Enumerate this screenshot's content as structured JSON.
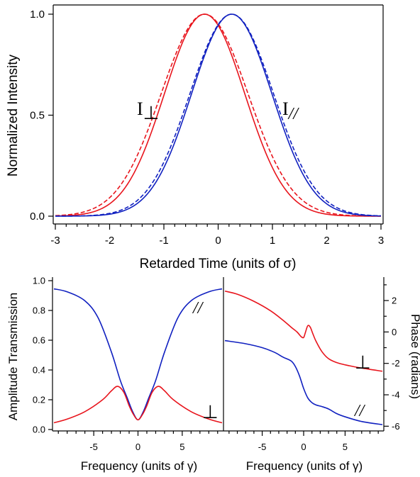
{
  "chart_data": [
    {
      "type": "line",
      "xlabel": "Retarded Time (units of σ)",
      "ylabel": "Normalized Intensity",
      "xlim": [
        -3,
        3
      ],
      "ylim": [
        0,
        1
      ],
      "xticks": [
        "-3",
        "-2",
        "-1",
        "0",
        "1",
        "2",
        "3"
      ],
      "yticks": [
        "0.0",
        "0.5",
        "1.0"
      ],
      "annotations": [
        {
          "text": "I",
          "subscript": "⊥",
          "x": -1.45,
          "y": 0.55
        },
        {
          "text": "I",
          "subscript": "//",
          "x": 1.15,
          "y": 0.55
        }
      ],
      "series": [
        {
          "color": "#e8141c",
          "style": "solid",
          "center": -0.25,
          "sigma": 0.74,
          "peak": 1.0
        },
        {
          "color": "#e8141c",
          "style": "dashed",
          "center": -0.25,
          "sigma": 0.8,
          "peak": 1.0
        },
        {
          "color": "#1020c0",
          "style": "solid",
          "center": 0.25,
          "sigma": 0.74,
          "peak": 1.0
        },
        {
          "color": "#1020c0",
          "style": "dashed",
          "center": 0.25,
          "sigma": 0.77,
          "peak": 1.0
        }
      ]
    },
    {
      "type": "line",
      "xlabel": "Frequency (units of γ)",
      "ylabel": "Amplitude Transmission",
      "xlim": [
        -9.5,
        9.5
      ],
      "ylim": [
        0,
        1
      ],
      "xticks": [
        "-5",
        "0",
        "5"
      ],
      "yticks": [
        "0.0",
        "0.2",
        "0.4",
        "0.6",
        "0.8",
        "1.0"
      ],
      "annotations": [
        {
          "text": "//"
        },
        {
          "text": "⊥"
        }
      ],
      "series": [
        {
          "label": "//",
          "color": "#1020c0",
          "x": [
            -9.5,
            -8,
            -6,
            -4.5,
            -3,
            -2,
            -1.2,
            -0.6,
            0,
            0.6,
            1.2,
            2,
            3,
            4.5,
            6,
            8,
            9.5
          ],
          "y": [
            0.945,
            0.925,
            0.865,
            0.75,
            0.52,
            0.33,
            0.21,
            0.12,
            0.065,
            0.12,
            0.21,
            0.33,
            0.52,
            0.75,
            0.865,
            0.925,
            0.945
          ]
        },
        {
          "label": "⊥",
          "color": "#e8141c",
          "x": [
            -9.5,
            -8,
            -6,
            -4,
            -3,
            -2.3,
            -1.6,
            -1,
            -0.5,
            0,
            0.5,
            1,
            1.6,
            2.3,
            3,
            4,
            6,
            8,
            9.5
          ],
          "y": [
            0.045,
            0.07,
            0.12,
            0.2,
            0.26,
            0.29,
            0.25,
            0.16,
            0.1,
            0.065,
            0.1,
            0.16,
            0.25,
            0.29,
            0.26,
            0.2,
            0.12,
            0.07,
            0.045
          ]
        }
      ]
    },
    {
      "type": "line",
      "xlabel": "Frequency (units of γ)",
      "ylabel": "Phase (radians)",
      "xlim": [
        -9.5,
        9.5
      ],
      "ylim": [
        -6.3,
        3.4
      ],
      "xticks": [
        "-5",
        "0",
        "5"
      ],
      "yticks": [
        "2",
        "0",
        "-2",
        "-4",
        "-6"
      ],
      "annotations": [
        {
          "text": "⊥"
        },
        {
          "text": "//"
        }
      ],
      "series": [
        {
          "label": "⊥",
          "color": "#e8141c",
          "x": [
            -9.5,
            -8,
            -6,
            -4,
            -2.5,
            -1.5,
            -0.8,
            -0.3,
            0,
            0.2,
            0.5,
            0.8,
            1.1,
            1.5,
            2.2,
            3,
            4,
            5.5,
            7,
            9.5
          ],
          "y": [
            2.6,
            2.4,
            1.95,
            1.35,
            0.75,
            0.3,
            0.0,
            -0.3,
            -0.35,
            -0.05,
            0.4,
            0.3,
            -0.1,
            -0.6,
            -1.25,
            -1.7,
            -1.95,
            -2.15,
            -2.3,
            -2.5
          ]
        },
        {
          "label": "//",
          "color": "#1020c0",
          "x": [
            -9.5,
            -7,
            -5,
            -3.5,
            -2.5,
            -1.5,
            -1,
            -0.5,
            0,
            0.5,
            1,
            1.5,
            2.2,
            3,
            4,
            5,
            7,
            9.5
          ],
          "y": [
            -0.55,
            -0.75,
            -1.0,
            -1.3,
            -1.6,
            -1.85,
            -2.2,
            -2.8,
            -3.6,
            -4.2,
            -4.5,
            -4.65,
            -4.75,
            -4.9,
            -5.2,
            -5.4,
            -5.7,
            -5.9
          ]
        }
      ]
    }
  ]
}
